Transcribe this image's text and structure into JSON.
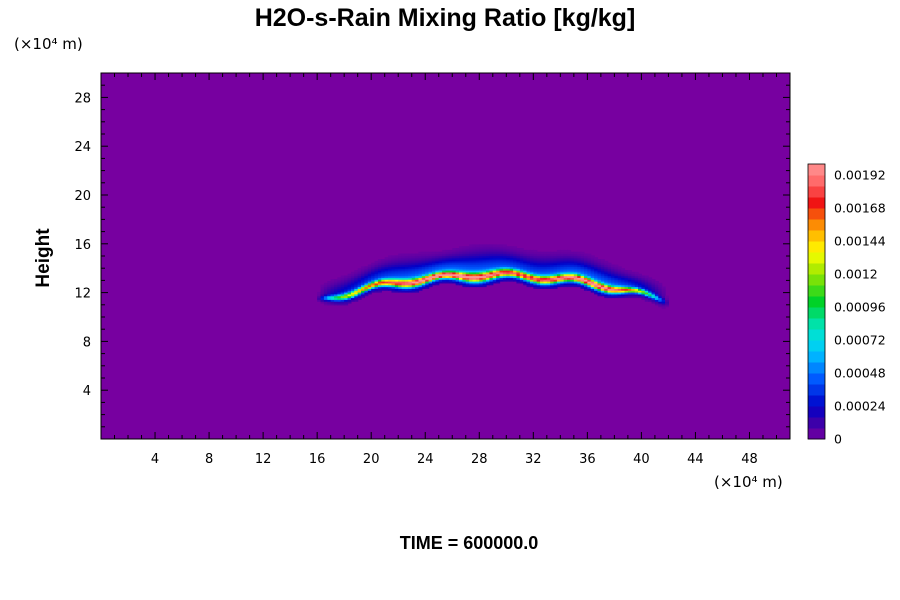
{
  "chart_data": {
    "type": "heatmap",
    "title": "H2O-s-Rain Mixing Ratio [kg/kg]",
    "xlabel": "",
    "ylabel": "Height",
    "x_unit": "(×10⁴ m)",
    "y_unit": "(×10⁴ m)",
    "xlim": [
      0,
      51
    ],
    "ylim": [
      0,
      30
    ],
    "x_ticks": [
      4,
      8,
      12,
      16,
      20,
      24,
      28,
      32,
      36,
      40,
      44,
      48
    ],
    "y_ticks": [
      4,
      8,
      12,
      16,
      20,
      24,
      28
    ],
    "colorbar": {
      "min": 0,
      "max": 0.002,
      "tick_values": [
        0,
        0.00024,
        0.00048,
        0.00072,
        0.00096,
        0.0012,
        0.00144,
        0.00168,
        0.00192
      ],
      "tick_labels": [
        "0",
        "0.00024",
        "0.00048",
        "0.00072",
        "0.00096",
        "0.0012",
        "0.00144",
        "0.00168",
        "0.00192"
      ]
    },
    "feature": {
      "description_hidden": true,
      "x_range": [
        16,
        42
      ],
      "base_height_range": [
        11,
        13
      ],
      "top_height_range": [
        13,
        16
      ],
      "max_value": 0.00172
    },
    "background_color": "#7700a0",
    "time_label": "TIME = 600000.0"
  }
}
